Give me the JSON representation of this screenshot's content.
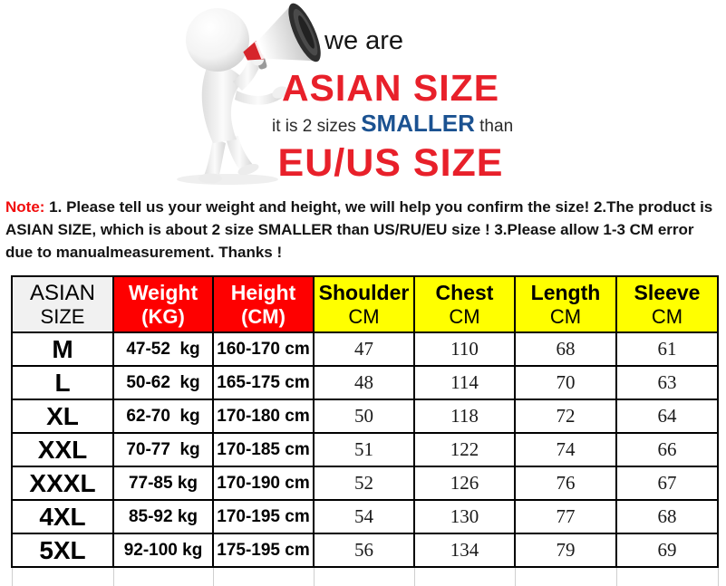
{
  "banner": {
    "we_are": "we are",
    "asian_size": "ASIAN SIZE",
    "middle_prefix": "it is 2 sizes ",
    "smaller": "SMALLER",
    "middle_suffix": " than",
    "eu_us": "EU/US SIZE"
  },
  "note": {
    "label": "Note:",
    "text": " 1. Please tell us your weight and height, we will help you confirm the size!  2.The product is ASIAN SIZE, which is about 2 size SMALLER than US/RU/EU size ! 3.Please allow 1-3 CM error due to manualmeasurement.  Thanks !"
  },
  "table": {
    "headers": [
      {
        "line1": "ASIAN",
        "line2": "SIZE"
      },
      {
        "line1": "Weight",
        "line2": "(KG)"
      },
      {
        "line1": "Height",
        "line2": "(CM)"
      },
      {
        "line1": "Shoulder",
        "line2": "CM"
      },
      {
        "line1": "Chest",
        "line2": "CM"
      },
      {
        "line1": "Length",
        "line2": "CM"
      },
      {
        "line1": "Sleeve",
        "line2": "CM"
      }
    ],
    "rows": [
      {
        "size": "M",
        "weight": "47-52  kg",
        "height": "160-170 cm",
        "shoulder": "47",
        "chest": "110",
        "length": "68",
        "sleeve": "61"
      },
      {
        "size": "L",
        "weight": "50-62  kg",
        "height": "165-175 cm",
        "shoulder": "48",
        "chest": "114",
        "length": "70",
        "sleeve": "63"
      },
      {
        "size": "XL",
        "weight": "62-70  kg",
        "height": "170-180 cm",
        "shoulder": "50",
        "chest": "118",
        "length": "72",
        "sleeve": "64"
      },
      {
        "size": "XXL",
        "weight": "70-77  kg",
        "height": "170-185 cm",
        "shoulder": "51",
        "chest": "122",
        "length": "74",
        "sleeve": "66"
      },
      {
        "size": "XXXL",
        "weight": "77-85 kg",
        "height": "170-190 cm",
        "shoulder": "52",
        "chest": "126",
        "length": "76",
        "sleeve": "67"
      },
      {
        "size": "4XL",
        "weight": "85-92 kg",
        "height": "170-195 cm",
        "shoulder": "54",
        "chest": "130",
        "length": "77",
        "sleeve": "68"
      },
      {
        "size": "5XL",
        "weight": "92-100 kg",
        "height": "175-195 cm",
        "shoulder": "56",
        "chest": "134",
        "length": "79",
        "sleeve": "69"
      }
    ]
  },
  "colors": {
    "headline_red": "#e8202a",
    "smaller_blue": "#1b5291",
    "note_red": "#f10d0d",
    "header_red": "#fe0000",
    "header_yellow": "#ffff00",
    "header_gray": "#f1f1f1"
  }
}
